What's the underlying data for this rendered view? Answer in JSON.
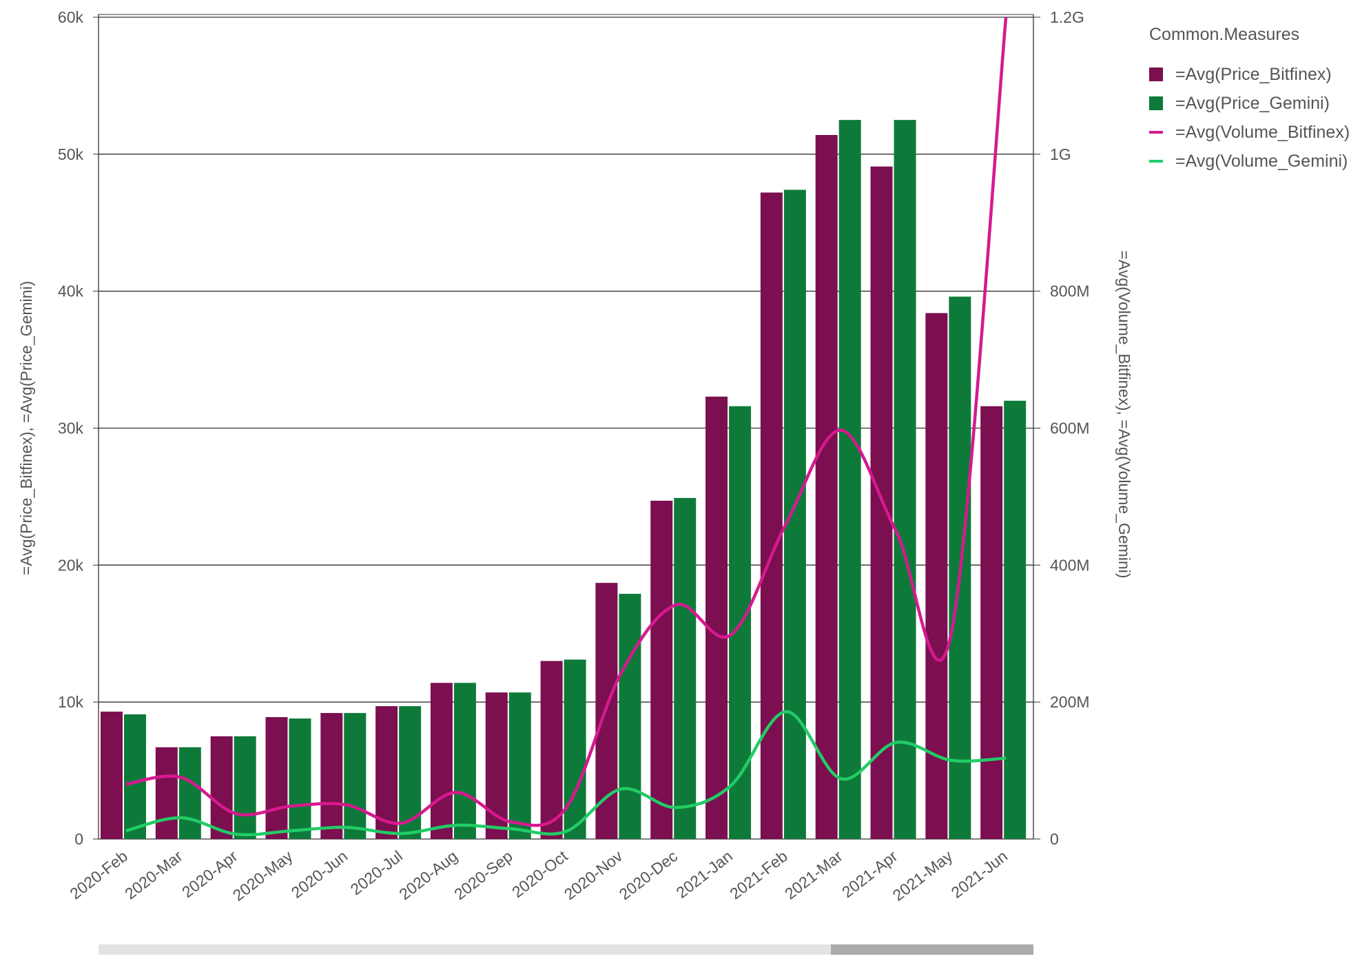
{
  "chart_data": {
    "type": "bar",
    "categories": [
      "2020-Feb",
      "2020-Mar",
      "2020-Apr",
      "2020-May",
      "2020-Jun",
      "2020-Jul",
      "2020-Aug",
      "2020-Sep",
      "2020-Oct",
      "2020-Nov",
      "2020-Dec",
      "2021-Jan",
      "2021-Feb",
      "2021-Mar",
      "2021-Apr",
      "2021-May",
      "2021-Jun"
    ],
    "ylabel_left": "=Avg(Price_Bitfinex), =Avg(Price_Gemini)",
    "ylabel_right": "=Avg(Volume_Bitfinex), =Avg(Volume_Gemini)",
    "ylim_left": [
      0,
      60000
    ],
    "ylim_right": [
      0,
      1200000000
    ],
    "left_ticks": [
      "0",
      "10k",
      "20k",
      "30k",
      "40k",
      "50k",
      "60k"
    ],
    "right_ticks": [
      "0",
      "200M",
      "400M",
      "600M",
      "800M",
      "1G",
      "1.2G"
    ],
    "grid": true,
    "legend_title": "Common.Measures",
    "legend_position": "right",
    "series": [
      {
        "name": "=Avg(Price_Bitfinex)",
        "type": "bar",
        "axis": "left",
        "color": "#7b0f4f",
        "values": [
          9300,
          6700,
          7500,
          8900,
          9200,
          9700,
          11400,
          10700,
          13000,
          18700,
          24700,
          32300,
          47200,
          51400,
          49100,
          38400,
          31600
        ]
      },
      {
        "name": "=Avg(Price_Gemini)",
        "type": "bar",
        "axis": "left",
        "color": "#0e7a3a",
        "values": [
          9100,
          6700,
          7500,
          8800,
          9200,
          9700,
          11400,
          10700,
          13100,
          17900,
          24900,
          31600,
          47400,
          52500,
          52500,
          39600,
          32000
        ]
      },
      {
        "name": "=Avg(Volume_Bitfinex)",
        "type": "line",
        "axis": "right",
        "color": "#d6198f",
        "values": [
          80000000,
          90000000,
          37000000,
          48000000,
          50000000,
          23000000,
          68000000,
          25000000,
          45000000,
          242000000,
          342000000,
          298000000,
          460000000,
          597000000,
          450000000,
          298000000,
          1200000000
        ]
      },
      {
        "name": "=Avg(Volume_Gemini)",
        "type": "line",
        "axis": "right",
        "color": "#22cc66",
        "values": [
          12000000,
          31000000,
          7000000,
          12000000,
          17000000,
          8000000,
          20000000,
          15000000,
          11000000,
          73000000,
          46000000,
          78000000,
          186000000,
          88000000,
          141000000,
          115000000,
          118000000
        ]
      }
    ]
  },
  "scrollbar": {
    "position_fraction": 0.78,
    "visible_fraction": 0.22
  }
}
